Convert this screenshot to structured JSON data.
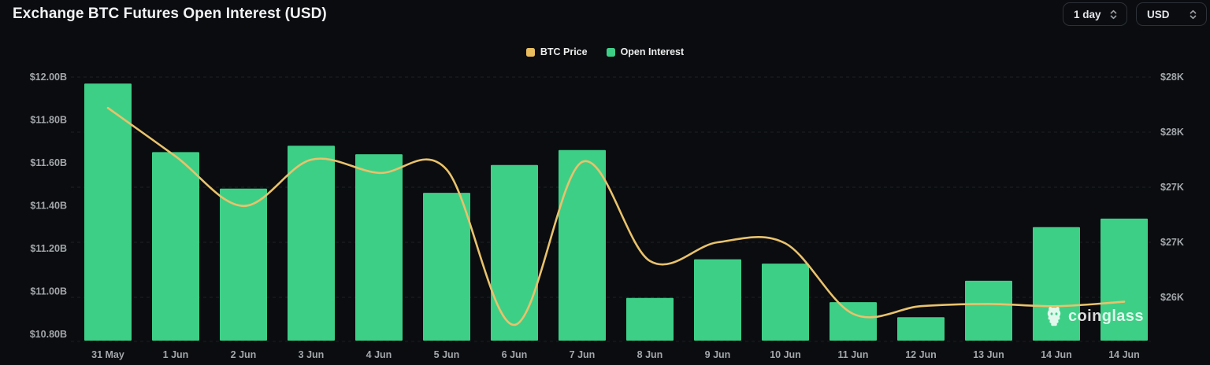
{
  "header": {
    "title": "Exchange BTC Futures Open Interest (USD)",
    "controls": [
      {
        "id": "interval",
        "label": "1 day"
      },
      {
        "id": "currency",
        "label": "USD"
      }
    ]
  },
  "legend": [
    {
      "label": "BTC Price",
      "color": "#e9bd5e"
    },
    {
      "label": "Open Interest",
      "color": "#3ecf87"
    }
  ],
  "watermark": {
    "text": "coinglass"
  },
  "chart_data": {
    "type": "bar",
    "subtype": "combo bar+line, dual y-axis",
    "title": "Exchange BTC Futures Open Interest (USD)",
    "categories": [
      "31 May",
      "1 Jun",
      "2 Jun",
      "3 Jun",
      "4 Jun",
      "5 Jun",
      "6 Jun",
      "7 Jun",
      "8 Jun",
      "9 Jun",
      "10 Jun",
      "11 Jun",
      "12 Jun",
      "13 Jun",
      "14 Jun",
      "14 Jun"
    ],
    "series": [
      {
        "name": "Open Interest",
        "type": "bar",
        "y_axis": "left",
        "unit": "USD billions",
        "values": [
          11.97,
          11.65,
          11.48,
          11.68,
          11.64,
          11.46,
          11.59,
          11.66,
          10.97,
          11.15,
          11.13,
          10.95,
          10.88,
          11.05,
          11.3,
          11.34
        ]
      },
      {
        "name": "BTC Price",
        "type": "line",
        "y_axis": "right",
        "unit": "USD thousands",
        "values": [
          27.72,
          27.28,
          26.83,
          27.25,
          27.13,
          27.16,
          25.75,
          27.23,
          26.33,
          26.5,
          26.49,
          25.85,
          25.92,
          25.94,
          25.92,
          25.96
        ]
      }
    ],
    "left_axis": {
      "tick_labels": [
        "$12.00B",
        "$11.80B",
        "$11.60B",
        "$11.40B",
        "$11.20B",
        "$11.00B",
        "$10.80B"
      ],
      "tick_values": [
        12.0,
        11.8,
        11.6,
        11.4,
        11.2,
        11.0,
        10.8
      ],
      "min": 10.8,
      "max": 12.0
    },
    "right_axis": {
      "tick_labels": [
        "$28K",
        "$28K",
        "$27K",
        "$27K",
        "$26K"
      ],
      "tick_values": [
        28.0,
        27.5,
        27.0,
        26.5,
        26.0
      ],
      "min": 26.0,
      "max": 28.0
    },
    "grid": {
      "horizontal": true,
      "style": "dashed"
    },
    "legend_position": "top-center"
  },
  "colors": {
    "background": "#0a0c0f",
    "bar": "#3ecf87",
    "line": "#e9c26c",
    "grid": "rgba(255,255,255,0.09)",
    "axis_text": "#a3a6ab",
    "title_text": "#f2f3f5",
    "control_border": "#2e3138",
    "control_text": "#e4e6e9",
    "watermark_text": "rgba(255,255,255,0.85)"
  }
}
